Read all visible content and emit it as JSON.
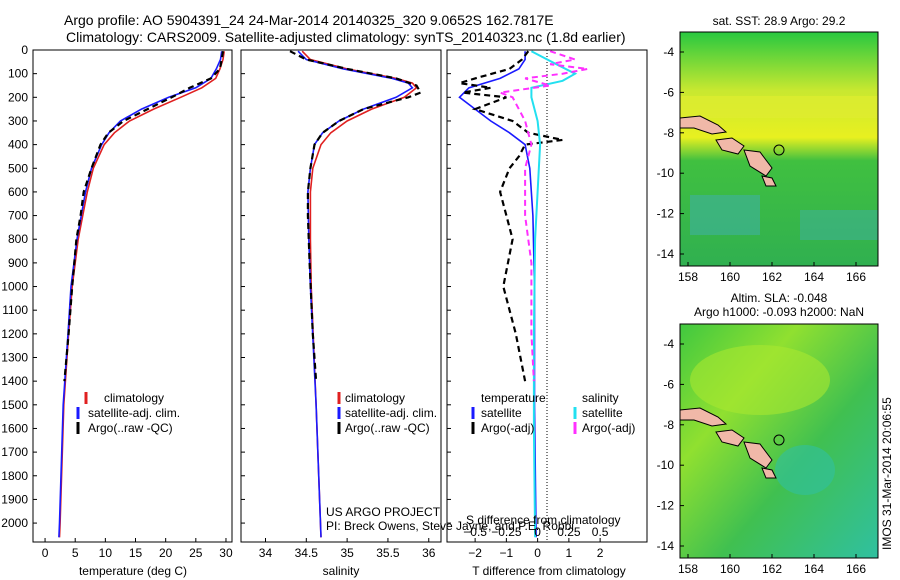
{
  "header": {
    "line1": "Argo profile: AO 5904391_24 24-Mar-2014 20140325_320 9.0652S 162.7817E",
    "line2": "Climatology: CARS2009. Satellite-adjusted climatology: synTS_20140323.nc (1.8d earlier)"
  },
  "colors": {
    "climatology": "#e02020",
    "satellite": "#1a1aff",
    "argo": "#000000",
    "sal_satellite": "#22e0f0",
    "sal_argo": "#ff30ff",
    "land": "#f0b8a8"
  },
  "depth_axis": {
    "ticks": [
      0,
      100,
      200,
      300,
      400,
      500,
      600,
      700,
      800,
      900,
      1000,
      1100,
      1200,
      1300,
      1400,
      1500,
      1600,
      1700,
      1800,
      1900,
      2000
    ],
    "ylim": [
      0,
      2080
    ]
  },
  "chart_data": [
    {
      "type": "line",
      "id": "temperature",
      "xlabel": "temperature (deg C)",
      "xticks": [
        0,
        5,
        10,
        15,
        20,
        25,
        30
      ],
      "xlim": [
        -2,
        31
      ],
      "series": [
        {
          "name": "climatology",
          "depth": [
            5,
            40,
            80,
            120,
            160,
            200,
            250,
            300,
            350,
            400,
            500,
            600,
            800,
            1000,
            1200,
            1500,
            2000,
            2060
          ],
          "values": [
            29.7,
            29.5,
            29.0,
            28.3,
            26.0,
            22.5,
            18.0,
            14.0,
            11.5,
            9.8,
            8.0,
            7.0,
            5.5,
            4.5,
            3.9,
            3.1,
            2.5,
            2.4
          ]
        },
        {
          "name": "satellite-adj. clim.",
          "depth": [
            5,
            40,
            80,
            120,
            160,
            200,
            250,
            300,
            350,
            400,
            500,
            600,
            800,
            1000,
            1200,
            1500,
            2000,
            2060
          ],
          "values": [
            29.3,
            29.1,
            28.4,
            27.5,
            25.0,
            20.5,
            16.0,
            12.5,
            10.6,
            9.4,
            7.7,
            6.7,
            5.3,
            4.3,
            3.8,
            3.0,
            2.4,
            2.3
          ]
        },
        {
          "name": "Argo(..raw -QC)",
          "depth": [
            5,
            40,
            80,
            120,
            160,
            200,
            250,
            300,
            350,
            400,
            500,
            600,
            700,
            800,
            1000,
            1200,
            1400
          ],
          "values": [
            29.5,
            29.3,
            29.0,
            27.5,
            24.0,
            21.0,
            17.0,
            13.0,
            10.5,
            9.2,
            7.7,
            6.4,
            5.9,
            5.2,
            4.5,
            3.9,
            3.2
          ]
        }
      ],
      "legend": [
        "climatology",
        "satellite-adj. clim.",
        "Argo(..raw -QC)"
      ]
    },
    {
      "type": "line",
      "id": "salinity",
      "xlabel": "salinity",
      "xticks": [
        34,
        34.5,
        35,
        35.5,
        36
      ],
      "xticklabels": [
        "34",
        "34.5",
        "35",
        "35.5",
        "36"
      ],
      "xlim": [
        33.7,
        36.15
      ],
      "series": [
        {
          "name": "climatology",
          "depth": [
            5,
            40,
            80,
            120,
            140,
            160,
            200,
            250,
            300,
            350,
            400,
            500,
            600,
            800,
            1000,
            1500,
            2060
          ],
          "values": [
            34.45,
            34.55,
            35.0,
            35.6,
            35.8,
            35.85,
            35.7,
            35.3,
            35.0,
            34.8,
            34.68,
            34.58,
            34.55,
            34.55,
            34.56,
            34.62,
            34.68
          ]
        },
        {
          "name": "satellite-adj. clim.",
          "depth": [
            5,
            40,
            80,
            120,
            140,
            160,
            200,
            250,
            300,
            350,
            400,
            500,
            600,
            800,
            1000,
            1500,
            2060
          ],
          "values": [
            34.4,
            34.5,
            34.95,
            35.55,
            35.75,
            35.8,
            35.6,
            35.2,
            34.9,
            34.7,
            34.6,
            34.55,
            34.52,
            34.53,
            34.55,
            34.62,
            34.68
          ]
        },
        {
          "name": "Argo(..raw -QC)",
          "depth": [
            5,
            40,
            80,
            120,
            150,
            180,
            200,
            250,
            300,
            350,
            400,
            500,
            600,
            700,
            900,
            1200,
            1400
          ],
          "values": [
            34.3,
            34.5,
            35.0,
            35.6,
            35.85,
            35.9,
            35.75,
            35.2,
            34.9,
            34.7,
            34.6,
            34.55,
            34.52,
            34.52,
            34.54,
            34.58,
            34.62
          ]
        }
      ],
      "legend": [
        "climatology",
        "satellite-adj. clim.",
        "Argo(..raw -QC)"
      ]
    },
    {
      "type": "line",
      "id": "difference",
      "xlabel": "T difference from climatology",
      "toplabel": "S difference from climatology",
      "xticks": [
        -2,
        -1,
        0,
        1,
        2
      ],
      "xticklabels": [
        "−2",
        "−1",
        "0",
        "1",
        "2"
      ],
      "xlim": [
        -2.9,
        3.5
      ],
      "sticks": [
        -0.5,
        -0.25,
        0,
        0.25,
        0.5
      ],
      "sticklabels": [
        "−0.5",
        "−0.25",
        "0",
        "0.25",
        "0.5"
      ],
      "series": [
        {
          "name": "temperature satellite",
          "depth": [
            5,
            40,
            80,
            120,
            160,
            200,
            250,
            300,
            350,
            400,
            500,
            700,
            1000,
            1500,
            2060
          ],
          "values": [
            -0.4,
            -0.4,
            -0.6,
            -1.2,
            -2.2,
            -2.5,
            -2.0,
            -1.5,
            -0.9,
            -0.4,
            -0.25,
            -0.15,
            -0.1,
            -0.1,
            -0.05
          ]
        },
        {
          "name": "temperature Argo(-adj)",
          "depth": [
            5,
            40,
            80,
            120,
            140,
            160,
            180,
            200,
            250,
            300,
            350,
            380,
            400,
            450,
            500,
            600,
            700,
            800,
            1000,
            1200,
            1400
          ],
          "values": [
            -0.3,
            -0.5,
            -0.9,
            -2.0,
            -2.5,
            -1.5,
            -2.4,
            -1.0,
            -2.0,
            -0.8,
            -0.3,
            0.8,
            -0.4,
            -0.6,
            -0.9,
            -1.2,
            -1.0,
            -0.8,
            -1.1,
            -0.7,
            -0.4
          ]
        },
        {
          "name": "salinity satellite",
          "depth": [
            5,
            60,
            100,
            130,
            160,
            200,
            300,
            400,
            600,
            800,
            1200,
            1600,
            2060
          ],
          "values": [
            -0.05,
            0.15,
            0.3,
            0.2,
            -0.05,
            -0.05,
            0.0,
            0.02,
            0.0,
            -0.02,
            -0.03,
            -0.03,
            -0.02
          ]
        },
        {
          "name": "salinity Argo(-adj)",
          "depth": [
            5,
            40,
            60,
            80,
            100,
            120,
            150,
            180,
            200,
            300,
            400,
            500,
            600,
            700,
            900,
            1200,
            1400
          ],
          "values": [
            0.1,
            0.3,
            0.1,
            0.4,
            0.2,
            -0.1,
            0.1,
            -0.3,
            -0.2,
            -0.1,
            -0.05,
            -0.1,
            -0.1,
            -0.1,
            -0.05,
            -0.05,
            -0.03
          ]
        }
      ],
      "legend_left_title": "temperature",
      "legend_right_title": "salinity",
      "legend_left": [
        "satellite",
        "Argo(-adj)"
      ],
      "legend_right": [
        "satellite",
        "Argo(-adj)"
      ]
    }
  ],
  "credits": {
    "line1": "US ARGO PROJECT",
    "line2": "PI: Breck Owens, Steve Jayne, and P.E. Robbi"
  },
  "maps": {
    "sst_title": "sat. SST: 28.9 Argo: 29.2",
    "sla_title1": "Altim. SLA: -0.048",
    "sla_title2": "Argo h1000: -0.093 h2000: NaN",
    "lat_ticks": [
      "-4",
      "-6",
      "-8",
      "-10",
      "-12",
      "-14"
    ],
    "lon_ticks": [
      "158",
      "160",
      "162",
      "164",
      "166"
    ]
  },
  "footer_stamp": "IMOS 31-Mar-2014 20:06:55"
}
